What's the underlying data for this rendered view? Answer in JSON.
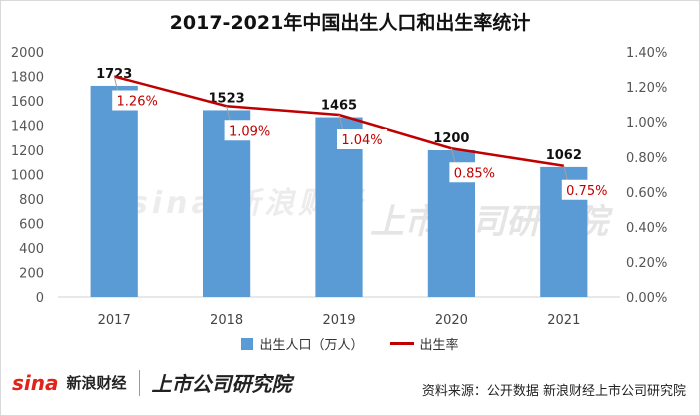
{
  "chart_data": {
    "type": "bar",
    "title": "2017-2021年中国出生人口和出生率统计",
    "categories": [
      "2017",
      "2018",
      "2019",
      "2020",
      "2021"
    ],
    "series": [
      {
        "name": "出生人口（万人）",
        "type": "bar",
        "axis": "left",
        "values": [
          1723,
          1523,
          1465,
          1200,
          1062
        ],
        "labels": [
          "1723",
          "1523",
          "1465",
          "1200",
          "1062"
        ],
        "color": "#5b9bd5"
      },
      {
        "name": "出生率",
        "type": "line",
        "axis": "right",
        "values": [
          1.26,
          1.09,
          1.04,
          0.85,
          0.75
        ],
        "labels": [
          "1.26%",
          "1.09%",
          "1.04%",
          "0.85%",
          "0.75%"
        ],
        "color": "#c00000"
      }
    ],
    "y_left": {
      "min": 0,
      "max": 2000,
      "ticks": [
        "0",
        "200",
        "400",
        "600",
        "800",
        "1000",
        "1200",
        "1400",
        "1600",
        "1800",
        "2000"
      ]
    },
    "y_right": {
      "min": 0,
      "max": 1.4,
      "ticks": [
        "0.00%",
        "0.20%",
        "0.40%",
        "0.60%",
        "0.80%",
        "1.00%",
        "1.20%",
        "1.40%"
      ]
    },
    "grid": false,
    "legend": "bottom"
  },
  "watermark": {
    "brand": "sina 新浪财经",
    "lab": "上市公司研究院"
  },
  "footer": {
    "logo_sina": "sina",
    "logo_cn": "新浪财经",
    "logo_lab": "上市公司研究院",
    "source": "资料来源：公开数据 新浪财经上市公司研究院"
  }
}
